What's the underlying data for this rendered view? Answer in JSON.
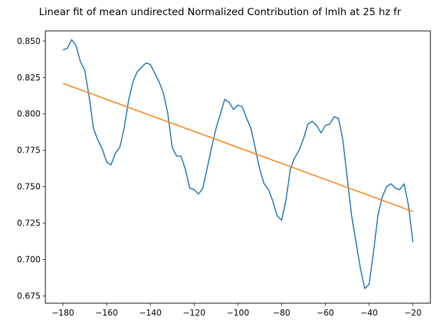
{
  "chart_data": {
    "type": "line",
    "title": "Linear fit of mean undirected Normalized Contribution of lmlh at 25 hz fr",
    "xlabel": "",
    "ylabel": "",
    "xlim": [
      -188,
      -12
    ],
    "ylim": [
      0.67,
      0.857
    ],
    "x_ticks": [
      -180,
      -160,
      -140,
      -120,
      -100,
      -80,
      -60,
      -40,
      -20
    ],
    "y_ticks": [
      0.675,
      0.7,
      0.725,
      0.75,
      0.775,
      0.8,
      0.825,
      0.85
    ],
    "x_tick_labels": [
      "−180",
      "−160",
      "−140",
      "−120",
      "−100",
      "−80",
      "−60",
      "−40",
      "−20"
    ],
    "y_tick_labels": [
      "0.675",
      "0.700",
      "0.725",
      "0.750",
      "0.775",
      "0.800",
      "0.825",
      "0.850"
    ],
    "grid": false,
    "series": [
      {
        "color": "#1f77b4",
        "x": [
          -180,
          -178,
          -176,
          -174,
          -172,
          -170,
          -168,
          -166,
          -164,
          -162,
          -160,
          -158,
          -156,
          -154,
          -152,
          -150,
          -148,
          -146,
          -144,
          -142,
          -140,
          -138,
          -136,
          -134,
          -132,
          -130,
          -128,
          -126,
          -124,
          -122,
          -120,
          -118,
          -116,
          -114,
          -112,
          -110,
          -108,
          -106,
          -104,
          -102,
          -100,
          -98,
          -96,
          -94,
          -92,
          -90,
          -88,
          -86,
          -84,
          -82,
          -80,
          -78,
          -76,
          -74,
          -72,
          -70,
          -68,
          -66,
          -64,
          -62,
          -60,
          -58,
          -56,
          -54,
          -52,
          -50,
          -48,
          -46,
          -44,
          -42,
          -40,
          -38,
          -36,
          -34,
          -32,
          -30,
          -28,
          -26,
          -24,
          -22,
          -20
        ],
        "y": [
          0.844,
          0.845,
          0.851,
          0.847,
          0.836,
          0.83,
          0.812,
          0.79,
          0.782,
          0.776,
          0.767,
          0.765,
          0.773,
          0.777,
          0.79,
          0.809,
          0.822,
          0.829,
          0.832,
          0.835,
          0.834,
          0.828,
          0.822,
          0.814,
          0.8,
          0.777,
          0.771,
          0.771,
          0.762,
          0.749,
          0.748,
          0.745,
          0.749,
          0.763,
          0.777,
          0.79,
          0.8,
          0.81,
          0.808,
          0.803,
          0.806,
          0.805,
          0.797,
          0.79,
          0.776,
          0.762,
          0.752,
          0.748,
          0.74,
          0.73,
          0.727,
          0.741,
          0.762,
          0.77,
          0.775,
          0.783,
          0.793,
          0.795,
          0.792,
          0.787,
          0.792,
          0.793,
          0.798,
          0.797,
          0.782,
          0.756,
          0.73,
          0.712,
          0.694,
          0.68,
          0.683,
          0.705,
          0.73,
          0.743,
          0.75,
          0.752,
          0.749,
          0.748,
          0.752,
          0.737,
          0.712
        ]
      },
      {
        "color": "#ff7f0e",
        "x": [
          -180,
          -20
        ],
        "y": [
          0.821,
          0.733
        ]
      }
    ]
  }
}
